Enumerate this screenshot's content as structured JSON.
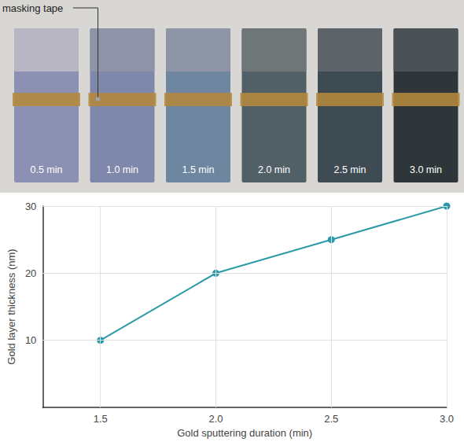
{
  "chart_data": {
    "type": "line",
    "x": [
      1.5,
      2.0,
      2.5,
      3.0
    ],
    "values": [
      10,
      20,
      25,
      30
    ],
    "color": "#2b9aa8",
    "marker": "circle",
    "xlabel": "Gold sputtering duration (min)",
    "ylabel": "Gold layer thickness (nm)",
    "xlim": [
      1.25,
      3.0
    ],
    "xticks": [
      1.5,
      {
        "value": 2,
        "label": "2.0"
      },
      2.5,
      {
        "value": 3,
        "label": "3.0"
      }
    ],
    "ylim": [
      0,
      30
    ],
    "yticks": [
      10,
      20,
      30
    ],
    "grid": true
  },
  "photo": {
    "callout": "masking tape",
    "labels": [
      "0.5 min",
      "1.0 min",
      "1.5 min",
      "2.0 min",
      "2.5 min",
      "3.0 min"
    ]
  }
}
